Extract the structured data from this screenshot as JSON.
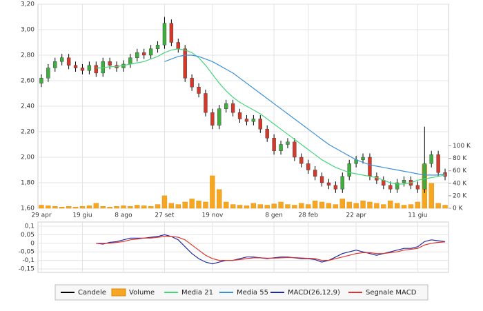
{
  "chart_data": [
    {
      "type": "candlestick",
      "categories": [
        "29 apr",
        null,
        null,
        null,
        null,
        null,
        "19 giu",
        null,
        null,
        null,
        null,
        null,
        "8 ago",
        null,
        null,
        null,
        null,
        null,
        "27 set",
        null,
        null,
        null,
        null,
        null,
        null,
        "19 nov",
        null,
        null,
        null,
        null,
        null,
        null,
        null,
        null,
        "8 gen",
        null,
        null,
        null,
        null,
        "28 feb",
        null,
        null,
        null,
        null,
        null,
        null,
        "22 apr",
        null,
        null,
        null,
        null,
        null,
        null,
        null,
        null,
        "11 giu",
        null,
        null,
        null,
        null
      ],
      "ylim": [
        1.6,
        3.2
      ],
      "yticks": [
        {
          "value": 1.6,
          "label": "1,60"
        },
        {
          "value": 1.8,
          "label": "1,80"
        },
        {
          "value": 2.0,
          "label": "2,00"
        },
        {
          "value": 2.2,
          "label": "2,20"
        },
        {
          "value": 2.4,
          "label": "2,40"
        },
        {
          "value": 2.6,
          "label": "2,60"
        },
        {
          "value": 2.8,
          "label": "2,80"
        },
        {
          "value": 3.0,
          "label": "3,00"
        },
        {
          "value": 3.2,
          "label": "3,20"
        }
      ],
      "y2lim": [
        0,
        327
      ],
      "y2ticks": [
        {
          "value": 0,
          "label": "0 K"
        },
        {
          "value": 20,
          "label": "20 K"
        },
        {
          "value": 40,
          "label": "40 K"
        },
        {
          "value": 60,
          "label": "60 K"
        },
        {
          "value": 80,
          "label": "80 K"
        },
        {
          "value": 100,
          "label": "100 K"
        }
      ],
      "grid": true,
      "up_color": "#3fae3f",
      "down_color": "#d33a2c",
      "series": [
        {
          "name": "Candele",
          "color": "#000000",
          "open": [
            2.58,
            2.62,
            2.7,
            2.75,
            2.78,
            2.72,
            2.7,
            2.68,
            2.72,
            2.66,
            2.75,
            2.72,
            2.7,
            2.73,
            2.78,
            2.82,
            2.8,
            2.85,
            2.88,
            3.05,
            2.9,
            2.85,
            2.62,
            2.55,
            2.5,
            2.35,
            2.25,
            2.38,
            2.42,
            2.35,
            2.3,
            2.28,
            2.3,
            2.22,
            2.15,
            2.05,
            2.1,
            2.12,
            2.0,
            1.95,
            1.9,
            1.85,
            1.8,
            1.78,
            1.75,
            1.85,
            1.95,
            1.98,
            2.0,
            1.85,
            1.82,
            1.78,
            1.75,
            1.8,
            1.82,
            1.78,
            1.75,
            1.95,
            2.02,
            1.88
          ],
          "high": [
            2.65,
            2.73,
            2.78,
            2.81,
            2.81,
            2.75,
            2.73,
            2.75,
            2.75,
            2.78,
            2.78,
            2.75,
            2.76,
            2.81,
            2.85,
            2.85,
            2.88,
            2.91,
            3.1,
            3.08,
            2.93,
            2.88,
            2.65,
            2.58,
            2.53,
            2.38,
            2.41,
            2.45,
            2.45,
            2.38,
            2.33,
            2.33,
            2.33,
            2.25,
            2.18,
            2.13,
            2.15,
            2.15,
            2.03,
            1.98,
            1.93,
            1.88,
            1.83,
            1.81,
            1.88,
            1.98,
            2.01,
            2.03,
            2.03,
            1.88,
            1.85,
            1.81,
            1.83,
            1.85,
            1.85,
            1.81,
            2.24,
            2.05,
            2.05,
            1.91
          ],
          "low": [
            2.55,
            2.59,
            2.67,
            2.72,
            2.69,
            2.67,
            2.65,
            2.65,
            2.63,
            2.63,
            2.69,
            2.67,
            2.67,
            2.7,
            2.75,
            2.77,
            2.77,
            2.82,
            2.85,
            2.87,
            2.82,
            2.59,
            2.52,
            2.47,
            2.32,
            2.22,
            2.22,
            2.35,
            2.32,
            2.27,
            2.25,
            2.25,
            2.19,
            2.12,
            2.02,
            2.02,
            2.07,
            1.97,
            1.92,
            1.87,
            1.82,
            1.77,
            1.75,
            1.72,
            1.72,
            1.82,
            1.92,
            1.95,
            1.82,
            1.79,
            1.75,
            1.72,
            1.72,
            1.77,
            1.75,
            1.72,
            1.72,
            1.92,
            1.85,
            1.82
          ],
          "close": [
            2.62,
            2.7,
            2.75,
            2.78,
            2.72,
            2.7,
            2.68,
            2.72,
            2.66,
            2.75,
            2.72,
            2.7,
            2.73,
            2.78,
            2.82,
            2.8,
            2.85,
            2.88,
            3.05,
            2.9,
            2.85,
            2.62,
            2.55,
            2.5,
            2.35,
            2.25,
            2.38,
            2.42,
            2.35,
            2.3,
            2.28,
            2.3,
            2.22,
            2.15,
            2.05,
            2.1,
            2.12,
            2.0,
            1.95,
            1.9,
            1.85,
            1.8,
            1.78,
            1.75,
            1.85,
            1.95,
            1.98,
            2.0,
            1.85,
            1.82,
            1.78,
            1.75,
            1.8,
            1.82,
            1.78,
            1.75,
            1.95,
            2.02,
            1.88,
            1.85
          ]
        },
        {
          "name": "Volume",
          "color": "#f5a623",
          "axis": "y2",
          "values": [
            5,
            4,
            3,
            2,
            3,
            2,
            3,
            4,
            8,
            3,
            2,
            3,
            4,
            3,
            5,
            4,
            3,
            6,
            20,
            8,
            6,
            10,
            15,
            12,
            10,
            52,
            30,
            10,
            6,
            5,
            4,
            8,
            6,
            5,
            7,
            10,
            6,
            5,
            8,
            6,
            12,
            10,
            8,
            6,
            15,
            10,
            8,
            12,
            10,
            8,
            6,
            12,
            8,
            5,
            6,
            10,
            70,
            40,
            8,
            5
          ]
        },
        {
          "name": "Media 21",
          "color": "#45d67a",
          "values": [
            null,
            null,
            null,
            null,
            null,
            null,
            null,
            null,
            2.7,
            2.7,
            2.71,
            2.71,
            2.72,
            2.73,
            2.74,
            2.75,
            2.77,
            2.79,
            2.82,
            2.84,
            2.85,
            2.84,
            2.82,
            2.78,
            2.72,
            2.65,
            2.58,
            2.52,
            2.47,
            2.43,
            2.4,
            2.37,
            2.34,
            2.3,
            2.26,
            2.22,
            2.18,
            2.14,
            2.1,
            2.06,
            2.02,
            1.98,
            1.95,
            1.92,
            1.9,
            1.88,
            1.87,
            1.86,
            1.85,
            1.84,
            1.82,
            1.8,
            1.79,
            1.79,
            1.8,
            1.82,
            1.83,
            1.84,
            1.85,
            1.86
          ]
        },
        {
          "name": "Media 55",
          "color": "#3a8fd8",
          "values": [
            null,
            null,
            null,
            null,
            null,
            null,
            null,
            null,
            null,
            null,
            null,
            null,
            null,
            null,
            null,
            null,
            null,
            null,
            2.75,
            2.77,
            2.79,
            2.8,
            2.8,
            2.79,
            2.77,
            2.75,
            2.72,
            2.69,
            2.66,
            2.62,
            2.58,
            2.54,
            2.5,
            2.46,
            2.42,
            2.38,
            2.34,
            2.3,
            2.26,
            2.22,
            2.18,
            2.14,
            2.1,
            2.07,
            2.04,
            2.01,
            1.98,
            1.96,
            1.94,
            1.93,
            1.92,
            1.91,
            1.9,
            1.89,
            1.88,
            1.87,
            1.86,
            1.86,
            1.86,
            1.87
          ]
        }
      ]
    },
    {
      "type": "line",
      "ylim": [
        -0.17,
        0.124
      ],
      "yticks": [
        {
          "value": 0.1,
          "label": "0,1"
        },
        {
          "value": 0.05,
          "label": "0,05"
        },
        0,
        {
          "value": -0.05,
          "label": "-0,05"
        },
        {
          "value": -0.1,
          "label": "-0,1"
        },
        {
          "value": -0.15,
          "label": "-0,15"
        }
      ],
      "grid": true,
      "series": [
        {
          "name": "MACD(26,12,9)",
          "color": "#1f2aa0",
          "values": [
            null,
            null,
            null,
            null,
            null,
            null,
            null,
            null,
            0.0,
            -0.005,
            0.005,
            0.01,
            0.02,
            0.03,
            0.03,
            0.03,
            0.035,
            0.04,
            0.05,
            0.04,
            0.02,
            -0.02,
            -0.06,
            -0.09,
            -0.11,
            -0.12,
            -0.11,
            -0.1,
            -0.1,
            -0.09,
            -0.08,
            -0.08,
            -0.085,
            -0.09,
            -0.085,
            -0.08,
            -0.08,
            -0.085,
            -0.09,
            -0.09,
            -0.095,
            -0.11,
            -0.1,
            -0.08,
            -0.06,
            -0.05,
            -0.04,
            -0.05,
            -0.06,
            -0.07,
            -0.06,
            -0.05,
            -0.04,
            -0.03,
            -0.03,
            -0.02,
            0.01,
            0.02,
            0.015,
            0.01
          ]
        },
        {
          "name": "Segnale MACD",
          "color": "#e0332b",
          "values": [
            null,
            null,
            null,
            null,
            null,
            null,
            null,
            null,
            0.0,
            0.0,
            0.0,
            0.005,
            0.01,
            0.02,
            0.025,
            0.03,
            0.03,
            0.035,
            0.04,
            0.04,
            0.035,
            0.02,
            -0.01,
            -0.04,
            -0.07,
            -0.09,
            -0.1,
            -0.1,
            -0.1,
            -0.095,
            -0.09,
            -0.085,
            -0.085,
            -0.087,
            -0.087,
            -0.085,
            -0.083,
            -0.084,
            -0.086,
            -0.088,
            -0.09,
            -0.1,
            -0.1,
            -0.09,
            -0.08,
            -0.07,
            -0.06,
            -0.055,
            -0.055,
            -0.06,
            -0.06,
            -0.055,
            -0.05,
            -0.04,
            -0.035,
            -0.03,
            -0.01,
            0.0,
            0.005,
            0.008
          ]
        }
      ]
    }
  ]
}
